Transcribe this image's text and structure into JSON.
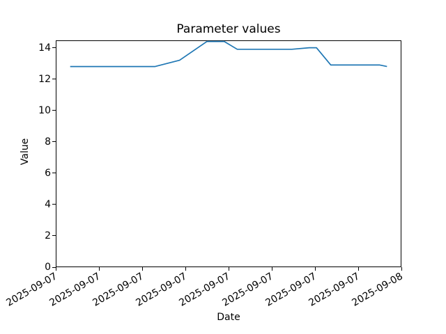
{
  "figure": {
    "title": "Parameter values",
    "background": "#ffffff"
  },
  "chart_data": {
    "type": "line",
    "title": "Parameter values",
    "xlabel": "Date",
    "ylabel": "Value",
    "grid": false,
    "legend": "none",
    "axis_color": "#000000",
    "ylim": [
      0,
      14.47
    ],
    "y_ticks": [
      0,
      2,
      4,
      6,
      8,
      10,
      12,
      14
    ],
    "x_axis": {
      "start_hour": 0,
      "end_hour": 24,
      "tick_interval_hours": 3,
      "ticks": [
        {
          "hour": 0,
          "label": "2025-09-07"
        },
        {
          "hour": 3,
          "label": "2025-09-07"
        },
        {
          "hour": 6,
          "label": "2025-09-07"
        },
        {
          "hour": 9,
          "label": "2025-09-07"
        },
        {
          "hour": 12,
          "label": "2025-09-07"
        },
        {
          "hour": 15,
          "label": "2025-09-07"
        },
        {
          "hour": 18,
          "label": "2025-09-07"
        },
        {
          "hour": 21,
          "label": "2025-09-07"
        },
        {
          "hour": 24,
          "label": "2025-09-08"
        }
      ]
    },
    "series": [
      {
        "name": "Parameter values",
        "color": "#1f77b4",
        "points": [
          {
            "hour": 1.0,
            "value": 12.8
          },
          {
            "hour": 6.9,
            "value": 12.8
          },
          {
            "hour": 8.6,
            "value": 13.2
          },
          {
            "hour": 10.5,
            "value": 14.4
          },
          {
            "hour": 11.7,
            "value": 14.4
          },
          {
            "hour": 12.6,
            "value": 13.9
          },
          {
            "hour": 16.4,
            "value": 13.9
          },
          {
            "hour": 17.6,
            "value": 14.0
          },
          {
            "hour": 18.1,
            "value": 14.0
          },
          {
            "hour": 19.1,
            "value": 12.9
          },
          {
            "hour": 22.5,
            "value": 12.9
          },
          {
            "hour": 23.0,
            "value": 12.8
          }
        ]
      }
    ]
  }
}
